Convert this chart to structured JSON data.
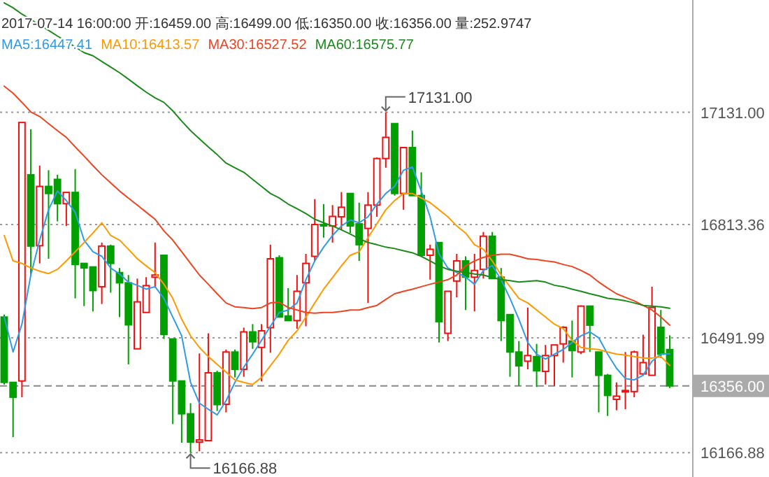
{
  "chart_data": {
    "type": "candlestick",
    "title": "2017-07-14 16:00:00  开:16459.00 高:16499.00 低:16350.00 收:16356.00 量:252.9747",
    "categories": [
      null,
      null,
      null,
      null,
      null,
      null,
      null,
      null,
      null,
      null,
      null,
      null,
      null,
      null,
      null,
      null,
      null,
      null,
      null,
      null,
      null,
      null,
      null,
      null,
      null,
      null,
      null,
      null,
      null,
      null,
      null,
      null,
      null,
      null,
      null,
      null,
      null,
      null,
      null,
      null,
      null,
      null,
      null,
      null,
      null,
      null,
      null,
      null,
      null,
      null,
      null,
      null,
      null,
      null,
      null,
      null,
      null,
      null,
      null,
      null,
      null,
      null,
      null,
      null,
      null,
      null,
      null,
      null,
      null,
      null,
      null,
      null,
      null,
      null,
      null,
      null
    ],
    "ohlc": [
      [
        16551,
        16558,
        16360,
        16366
      ],
      [
        16366,
        16366,
        16211,
        16324
      ],
      [
        16370,
        17102,
        16324,
        17102
      ],
      [
        16954,
        17083,
        16667,
        16752
      ],
      [
        16753,
        16980,
        16703,
        16921
      ],
      [
        16921,
        16967,
        16716,
        16901
      ],
      [
        16941,
        16954,
        16822,
        16872
      ],
      [
        16872,
        16904,
        16809,
        16904
      ],
      [
        16904,
        16970,
        16604,
        16700
      ],
      [
        16703,
        16703,
        16582,
        16690
      ],
      [
        16693,
        16693,
        16567,
        16626
      ],
      [
        16637,
        16762,
        16588,
        16752
      ],
      [
        16752,
        16756,
        16620,
        16703
      ],
      [
        16677,
        16690,
        16551,
        16648
      ],
      [
        16648,
        16670,
        16417,
        16529
      ],
      [
        16461,
        16660,
        16461,
        16594
      ],
      [
        16564,
        16664,
        16564,
        16640
      ],
      [
        16664,
        16762,
        16634,
        16670
      ],
      [
        16726,
        16726,
        16489,
        16502
      ],
      [
        16489,
        16489,
        16248,
        16370
      ],
      [
        16370,
        16370,
        16195,
        16277
      ],
      [
        16277,
        16307,
        16166.88,
        16197
      ],
      [
        16197,
        16448,
        16171,
        16203
      ],
      [
        16201,
        16505,
        16201,
        16393
      ],
      [
        16393,
        16399,
        16285,
        16303
      ],
      [
        16304,
        16459,
        16281,
        16452
      ],
      [
        16452,
        16459,
        16380,
        16403
      ],
      [
        16403,
        16521,
        16382,
        16509
      ],
      [
        16509,
        16531,
        16461,
        16481
      ],
      [
        16465,
        16531,
        16369,
        16512
      ],
      [
        16521,
        16756,
        16450,
        16716
      ],
      [
        16719,
        16726,
        16551,
        16551
      ],
      [
        16554,
        16633,
        16541,
        16541
      ],
      [
        16541,
        16670,
        16518,
        16624
      ],
      [
        16648,
        16730,
        16525,
        16703
      ],
      [
        16723,
        16885,
        16710,
        16813
      ],
      [
        16813,
        16871,
        16776,
        16809
      ],
      [
        16809,
        16868,
        16762,
        16836
      ],
      [
        16835,
        16905,
        16799,
        16862
      ],
      [
        16901,
        16901,
        16789,
        16809
      ],
      [
        16815,
        16875,
        16710,
        16756
      ],
      [
        16802,
        16905,
        16591,
        16868
      ],
      [
        16868,
        17003,
        16835,
        17000
      ],
      [
        17000,
        17131,
        16974,
        17060
      ],
      [
        17099,
        17099,
        16895,
        16901
      ],
      [
        16901,
        17033,
        16855,
        17031
      ],
      [
        17031,
        17079,
        16895,
        16895
      ],
      [
        16895,
        16961,
        16723,
        16726
      ],
      [
        16726,
        16756,
        16657,
        16743
      ],
      [
        16762,
        16762,
        16479,
        16538
      ],
      [
        16505,
        16624,
        16483,
        16624
      ],
      [
        16653,
        16730,
        16607,
        16710
      ],
      [
        16710,
        16723,
        16571,
        16664
      ],
      [
        16664,
        16730,
        16567,
        16683
      ],
      [
        16686,
        16792,
        16660,
        16780
      ],
      [
        16780,
        16792,
        16660,
        16660
      ],
      [
        16664,
        16690,
        16483,
        16541
      ],
      [
        16558,
        16558,
        16382,
        16452
      ],
      [
        16452,
        16483,
        16356,
        16413
      ],
      [
        16426,
        16578,
        16403,
        16442
      ],
      [
        16439,
        16475,
        16353,
        16399
      ],
      [
        16397,
        16472,
        16360,
        16442
      ],
      [
        16442,
        16472,
        16356,
        16472
      ],
      [
        16475,
        16525,
        16422,
        16522
      ],
      [
        16483,
        16541,
        16380,
        16456
      ],
      [
        16452,
        16584,
        16446,
        16582
      ],
      [
        16582,
        16582,
        16452,
        16528
      ],
      [
        16452,
        16452,
        16281,
        16386
      ],
      [
        16386,
        16390,
        16271,
        16329
      ],
      [
        16318,
        16366,
        16287,
        16327
      ],
      [
        16340,
        16452,
        16290,
        16343
      ],
      [
        16340,
        16456,
        16324,
        16452
      ],
      [
        16390,
        16501,
        16385,
        16422
      ],
      [
        16386,
        16637,
        16386,
        16578
      ],
      [
        16522,
        16571,
        16435,
        16446
      ],
      [
        16459,
        16499,
        16350,
        16356
      ]
    ],
    "series": [
      {
        "name": "MA5:16447.41",
        "type": "line",
        "color": "#2f9be8",
        "values": [
          16551,
          16452,
          16531,
          16670,
          16769,
          16855,
          16908,
          16881,
          16848,
          16769,
          16736,
          16723,
          16690,
          16673,
          16650,
          16641,
          16630,
          16637,
          16604,
          16551,
          16498,
          16366,
          16307,
          16290,
          16274,
          16314,
          16366,
          16409,
          16446,
          16485,
          16525,
          16564,
          16571,
          16591,
          16657,
          16710,
          16749,
          16782,
          16809,
          16826,
          16818,
          16835,
          16871,
          16901,
          16921,
          16967,
          16976,
          16908,
          16835,
          16730,
          16690,
          16677,
          16664,
          16644,
          16683,
          16697,
          16657,
          16604,
          16545,
          16479,
          16446,
          16432,
          16446,
          16459,
          16479,
          16498,
          16509,
          16492,
          16446,
          16406,
          16377,
          16373,
          16386,
          16426,
          16446,
          16447
        ]
      },
      {
        "name": "MA10:16413.57",
        "type": "line",
        "color": "#ff9900",
        "values": [
          16782,
          16710,
          16703,
          16690,
          16681,
          16674,
          16686,
          16710,
          16736,
          16762,
          16789,
          16818,
          16782,
          16769,
          16743,
          16716,
          16696,
          16677,
          16644,
          16604,
          16545,
          16498,
          16465,
          16439,
          16417,
          16395,
          16373,
          16366,
          16360,
          16380,
          16413,
          16446,
          16485,
          16512,
          16551,
          16591,
          16630,
          16663,
          16696,
          16726,
          16736,
          16776,
          16815,
          16855,
          16881,
          16901,
          16901,
          16888,
          16875,
          16855,
          16835,
          16809,
          16789,
          16756,
          16743,
          16710,
          16670,
          16637,
          16604,
          16591,
          16571,
          16551,
          16531,
          16518,
          16485,
          16465,
          16461,
          16459,
          16452,
          16446,
          16443,
          16439,
          16435,
          16435,
          16439,
          16414
        ]
      },
      {
        "name": "MA30:16527.52",
        "type": "line",
        "color": "#ee4422",
        "values": [
          17205,
          17185,
          17159,
          17132,
          17119,
          17099,
          17079,
          17060,
          17033,
          17007,
          16980,
          16954,
          16931,
          16908,
          16888,
          16868,
          16848,
          16828,
          16795,
          16769,
          16736,
          16703,
          16670,
          16644,
          16617,
          16591,
          16580,
          16578,
          16575,
          16578,
          16591,
          16593,
          16578,
          16571,
          16564,
          16562,
          16564,
          16564,
          16567,
          16571,
          16571,
          16578,
          16584,
          16601,
          16617,
          16624,
          16630,
          16637,
          16644,
          16650,
          16657,
          16670,
          16696,
          16710,
          16720,
          16726,
          16729,
          16729,
          16723,
          16716,
          16714,
          16710,
          16707,
          16700,
          16694,
          16683,
          16670,
          16650,
          16633,
          16617,
          16607,
          16597,
          16584,
          16571,
          16551,
          16528
        ]
      },
      {
        "name": "MA60:16575.77",
        "type": "line",
        "color": "#1a8a1a",
        "values": [
          17441,
          17427,
          17409,
          17394,
          17378,
          17363,
          17347,
          17332,
          17316,
          17300,
          17291,
          17275,
          17259,
          17243,
          17225,
          17206,
          17188,
          17172,
          17159,
          17135,
          17106,
          17079,
          17056,
          17033,
          17011,
          16987,
          16974,
          16961,
          16941,
          16921,
          16901,
          16888,
          16871,
          16858,
          16844,
          16828,
          16818,
          16809,
          16798,
          16786,
          16773,
          16762,
          16756,
          16749,
          16745,
          16739,
          16733,
          16723,
          16710,
          16696,
          16686,
          16681,
          16677,
          16673,
          16670,
          16663,
          16657,
          16654,
          16650,
          16652,
          16654,
          16650,
          16641,
          16637,
          16630,
          16624,
          16617,
          16611,
          16604,
          16601,
          16597,
          16591,
          16584,
          16582,
          16580,
          16576
        ]
      }
    ],
    "ylim": [
      16098,
      17449
    ],
    "yticks": [
      {
        "value": 17131,
        "label": "17131.00"
      },
      {
        "value": 16813.36,
        "label": "16813.36"
      },
      {
        "value": 16491.99,
        "label": "16491.99"
      },
      {
        "value": 16166.88,
        "label": "16166.88"
      }
    ],
    "grid": "y",
    "legend": "top",
    "tick_labels": "y",
    "ref_lines": [
      {
        "axis": "y",
        "value": 16356,
        "label": "16356.00"
      }
    ],
    "annotations": [
      "17131.00",
      "16166.88"
    ]
  }
}
